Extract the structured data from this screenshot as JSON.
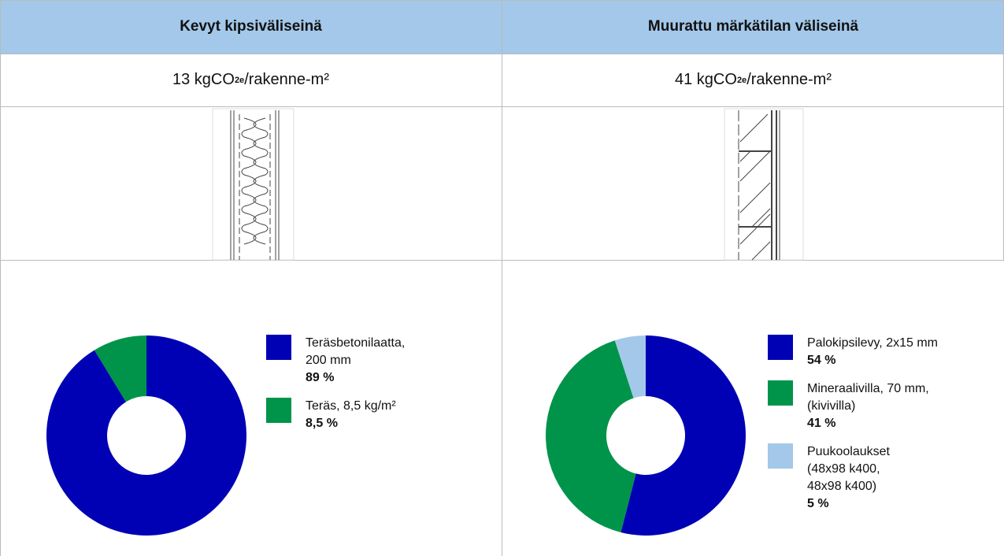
{
  "table": {
    "headers": [
      "Kevyt kipsiväliseinä",
      "Muurattu märkätilan väliseinä"
    ],
    "emissions": [
      {
        "prefix": "13 kgCO",
        "sub": "2e",
        "suffix": "/rakenne-m²"
      },
      {
        "prefix": "41 kgCO",
        "sub": "2e",
        "suffix": "/rakenne-m²"
      }
    ]
  },
  "charts": [
    {
      "type": "pie",
      "categories": [
        "Teräsbetonilaatta, 200 mm",
        "Teräs, 8,5 kg/m²"
      ],
      "values": [
        89,
        8.5
      ],
      "value_labels": [
        "89 %",
        "8,5 %"
      ],
      "colors": [
        "#0000b4",
        "#00944a"
      ]
    },
    {
      "type": "pie",
      "categories": [
        "Palokipsilevy, 2x15 mm",
        "Mineraalivilla, 70 mm, (kivivilla)",
        "Puukoolaukset (48x98 k400, 48x98 k400)"
      ],
      "values": [
        54,
        41,
        5
      ],
      "value_labels": [
        "54 %",
        "41 %",
        "5 %"
      ],
      "colors": [
        "#0000b4",
        "#00944a",
        "#a3c8ea"
      ]
    }
  ]
}
